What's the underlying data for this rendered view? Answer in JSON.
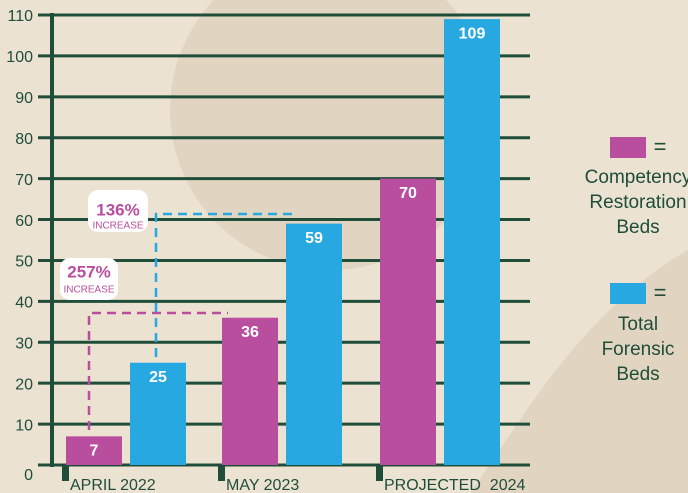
{
  "chart_data": {
    "type": "bar",
    "categories": [
      "APRIL 2022",
      "MAY 2023",
      "PROJECTED  2024"
    ],
    "series": [
      {
        "name": "Competency Restoration Beds",
        "color": "#b94d9e",
        "values": [
          7,
          36,
          70
        ]
      },
      {
        "name": "Total Forensic Beds",
        "color": "#27a8e0",
        "values": [
          25,
          59,
          109
        ]
      }
    ],
    "ylim": [
      0,
      110
    ],
    "yticks": [
      0,
      10,
      20,
      30,
      40,
      50,
      60,
      70,
      80,
      90,
      100,
      110
    ],
    "grid": true,
    "grid_color": "#1f4d3a"
  },
  "annotations": [
    {
      "percent": "257%",
      "label": "INCREASE"
    },
    {
      "percent": "136%",
      "label": "INCREASE"
    }
  ],
  "legend_separator": "="
}
